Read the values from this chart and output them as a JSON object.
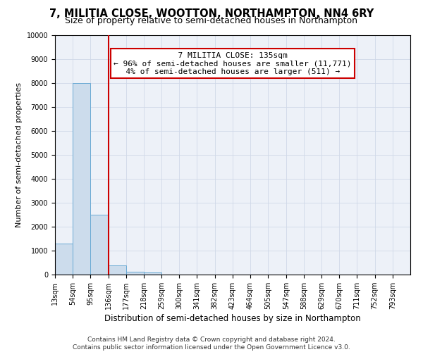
{
  "title": "7, MILITIA CLOSE, WOOTTON, NORTHAMPTON, NN4 6RY",
  "subtitle": "Size of property relative to semi-detached houses in Northampton",
  "xlabel": "Distribution of semi-detached houses by size in Northampton",
  "ylabel": "Number of semi-detached properties",
  "footer_line1": "Contains HM Land Registry data © Crown copyright and database right 2024.",
  "footer_line2": "Contains public sector information licensed under the Open Government Licence v3.0.",
  "annotation_title": "7 MILITIA CLOSE: 135sqm",
  "annotation_line1": "← 96% of semi-detached houses are smaller (11,771)",
  "annotation_line2": "4% of semi-detached houses are larger (511) →",
  "bar_edges": [
    13,
    54,
    95,
    136,
    177,
    218,
    259,
    300,
    341,
    382,
    423,
    464,
    505,
    547,
    588,
    629,
    670,
    711,
    752,
    793,
    834
  ],
  "bar_heights": [
    1300,
    8000,
    2500,
    380,
    130,
    80,
    0,
    0,
    0,
    0,
    0,
    0,
    0,
    0,
    0,
    0,
    0,
    0,
    0,
    0
  ],
  "bar_color": "#ccdcec",
  "bar_edge_color": "#6aaad4",
  "vline_x": 136,
  "vline_color": "#cc0000",
  "ylim": [
    0,
    10000
  ],
  "yticks": [
    0,
    1000,
    2000,
    3000,
    4000,
    5000,
    6000,
    7000,
    8000,
    9000,
    10000
  ],
  "grid_color": "#d0d8e8",
  "background_color": "#edf1f8",
  "title_fontsize": 10.5,
  "subtitle_fontsize": 9,
  "xlabel_fontsize": 8.5,
  "ylabel_fontsize": 8,
  "tick_fontsize": 7,
  "footer_fontsize": 6.5,
  "annotation_fontsize": 8,
  "annotation_box_color": "#ffffff",
  "annotation_box_edgecolor": "#cc0000"
}
